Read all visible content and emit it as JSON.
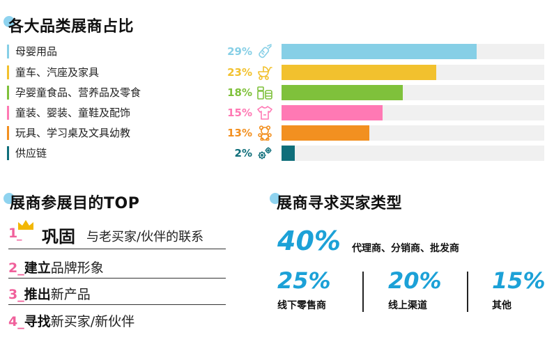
{
  "section1": {
    "title": "各大品类展商占比"
  },
  "chart_data": {
    "type": "bar",
    "title": "各大品类展商占比",
    "categories": [
      "母婴用品",
      "童车、汽座及家具",
      "孕婴童食品、营养品及零食",
      "童装、婴装、童鞋及配饰",
      "玩具、学习桌及文具幼教",
      "供应链"
    ],
    "values": [
      29,
      23,
      18,
      15,
      13,
      2
    ],
    "value_labels": [
      "29%",
      "23%",
      "18%",
      "15%",
      "13%",
      "2%"
    ],
    "colors": [
      "#86cfe6",
      "#f2c12e",
      "#7fc13b",
      "#ff79b4",
      "#f29020",
      "#0f6e7a"
    ],
    "icons": [
      "baby-bottle-icon",
      "stroller-icon",
      "food-jar-icon",
      "baby-onesie-icon",
      "teddy-bear-icon",
      "gears-icon"
    ],
    "xlim": [
      0,
      39
    ]
  },
  "section2": {
    "title": "展商参展目的TOP",
    "items": [
      {
        "num": "1",
        "sep": "_",
        "keyword": "巩固",
        "rest": "与老买家/伙伴的联系"
      },
      {
        "num": "2",
        "sep": "_",
        "keyword": "建立",
        "rest": "品牌形象"
      },
      {
        "num": "3",
        "sep": "_",
        "keyword": "推出",
        "rest": "新产品"
      },
      {
        "num": "4",
        "sep": "_",
        "keyword": "寻找",
        "rest": "新买家/新伙伴"
      }
    ],
    "crown_icon": "crown-icon"
  },
  "section3": {
    "title": "展商寻求买家类型",
    "main": {
      "value": "40%",
      "label": "代理商、分销商、批发商"
    },
    "others": [
      {
        "value": "25%",
        "label": "线下零售商"
      },
      {
        "value": "20%",
        "label": "线上渠道"
      },
      {
        "value": "15%",
        "label": "其他"
      }
    ]
  }
}
